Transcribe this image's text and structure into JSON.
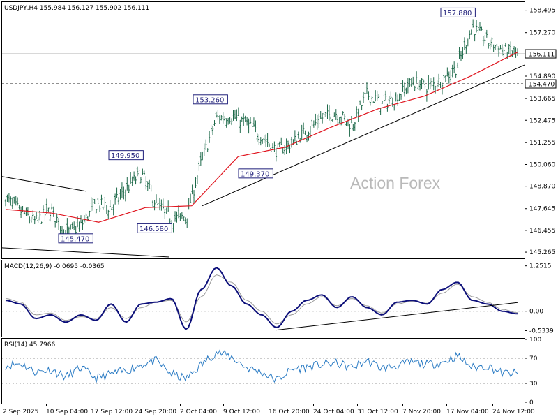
{
  "header": {
    "main": "USDJPY,H4  155.984 156.127 155.902 156.111",
    "macd": "MACD(12,26,9) -0.0695 -0.0365",
    "rsi": "RSI(14) 45.7966"
  },
  "watermark": "Action Forex",
  "colors": {
    "bar": "#1e6a4a",
    "ma": "#e0141e",
    "macd": "#0c0f7a",
    "signal": "#9a9a9a",
    "rsi": "#2a7bc4",
    "annotation": "#1f1f7a",
    "trendline": "#000000"
  },
  "chart_data": [
    {
      "type": "ohlc",
      "title": "USDJPY,H4",
      "header_values": {
        "open": 155.984,
        "high": 156.127,
        "low": 155.902,
        "close": 156.111
      },
      "ylim": [
        145.0,
        158.9
      ],
      "y_ticks": [
        "158.495",
        "157.270",
        "156.085",
        "154.890",
        "153.665",
        "152.475",
        "151.255",
        "150.060",
        "148.870",
        "147.645",
        "146.455",
        "145.265"
      ],
      "x_ticks": [
        "2 Sep 2025",
        "10 Sep 04:00",
        "17 Sep 12:00",
        "24 Sep 20:00",
        "2 Oct 04:00",
        "9 Oct 12:00",
        "16 Oct 20:00",
        "24 Oct 04:00",
        "31 Oct 12:00",
        "7 Nov 20:00",
        "17 Nov 04:00",
        "24 Nov 12:00"
      ],
      "current_price": "156.111",
      "level": "154.470",
      "annotations": [
        {
          "text": "145.470",
          "at": "10 Sep 04:00"
        },
        {
          "text": "149.950",
          "at": "24 Sep 20:00"
        },
        {
          "text": "146.580",
          "at": "2 Oct 04:00"
        },
        {
          "text": "153.260",
          "at": "9 Oct 12:00"
        },
        {
          "text": "149.370",
          "at": "16 Oct 20:00"
        },
        {
          "text": "157.880",
          "at": "17 Nov 04:00"
        }
      ],
      "series_close": [
        {
          "date": "2 Sep 2025",
          "close": 148.2
        },
        {
          "date": "5 Sep 2025",
          "close": 147.5
        },
        {
          "date": "10 Sep 04:00",
          "close": 146.9
        },
        {
          "date": "12 Sep 2025",
          "close": 147.6
        },
        {
          "date": "16 Sep 2025",
          "close": 146.3
        },
        {
          "date": "17 Sep 12:00",
          "close": 146.7
        },
        {
          "date": "19 Sep 2025",
          "close": 147.9
        },
        {
          "date": "23 Sep 2025",
          "close": 147.7
        },
        {
          "date": "24 Sep 20:00",
          "close": 148.7
        },
        {
          "date": "26 Sep 2025",
          "close": 149.6
        },
        {
          "date": "30 Sep 2025",
          "close": 147.9
        },
        {
          "date": "1 Oct 2025",
          "close": 147.1
        },
        {
          "date": "2 Oct 04:00",
          "close": 147.2
        },
        {
          "date": "6 Oct 2025",
          "close": 150.2
        },
        {
          "date": "8 Oct 2025",
          "close": 152.6
        },
        {
          "date": "9 Oct 12:00",
          "close": 152.7
        },
        {
          "date": "11 Oct 2025",
          "close": 152.3
        },
        {
          "date": "14 Oct 2025",
          "close": 151.6
        },
        {
          "date": "16 Oct 20:00",
          "close": 150.8
        },
        {
          "date": "20 Oct 2025",
          "close": 151.2
        },
        {
          "date": "22 Oct 2025",
          "close": 151.9
        },
        {
          "date": "24 Oct 04:00",
          "close": 152.6
        },
        {
          "date": "27 Oct 2025",
          "close": 152.9
        },
        {
          "date": "29 Oct 2025",
          "close": 152.2
        },
        {
          "date": "31 Oct 12:00",
          "close": 153.9
        },
        {
          "date": "3 Nov 2025",
          "close": 153.4
        },
        {
          "date": "5 Nov 2025",
          "close": 153.7
        },
        {
          "date": "7 Nov 20:00",
          "close": 154.6
        },
        {
          "date": "11 Nov 2025",
          "close": 154.3
        },
        {
          "date": "13 Nov 2025",
          "close": 154.7
        },
        {
          "date": "17 Nov 04:00",
          "close": 155.4
        },
        {
          "date": "19 Nov 2025",
          "close": 157.6
        },
        {
          "date": "21 Nov 2025",
          "close": 156.8
        },
        {
          "date": "24 Nov 12:00",
          "close": 156.3
        },
        {
          "date": "26 Nov 2025",
          "close": 156.111
        }
      ],
      "series_ma": [
        {
          "date": "2 Sep 2025",
          "value": 147.6
        },
        {
          "date": "10 Sep 04:00",
          "value": 147.4
        },
        {
          "date": "17 Sep 12:00",
          "value": 146.9
        },
        {
          "date": "24 Sep 20:00",
          "value": 147.7
        },
        {
          "date": "2 Oct 04:00",
          "value": 147.8
        },
        {
          "date": "9 Oct 12:00",
          "value": 150.5
        },
        {
          "date": "16 Oct 20:00",
          "value": 151.0
        },
        {
          "date": "24 Oct 04:00",
          "value": 152.1
        },
        {
          "date": "31 Oct 12:00",
          "value": 153.1
        },
        {
          "date": "7 Nov 20:00",
          "value": 153.8
        },
        {
          "date": "17 Nov 04:00",
          "value": 154.9
        },
        {
          "date": "24 Nov 12:00",
          "value": 156.2
        }
      ]
    },
    {
      "type": "line",
      "title": "MACD(12,26,9)",
      "header_values": {
        "macd": -0.0695,
        "signal": -0.0365
      },
      "ylim": [
        -0.66,
        1.38
      ],
      "y_ticks": [
        "1.2515",
        "0.00",
        "-0.5339"
      ],
      "series": [
        {
          "name": "MACD",
          "values": [
            0.3,
            0.2,
            -0.2,
            -0.1,
            -0.3,
            -0.1,
            -0.25,
            0.2,
            -0.3,
            0.2,
            0.25,
            0.35,
            -0.5,
            0.6,
            1.2,
            0.7,
            0.2,
            -0.1,
            -0.45,
            0.0,
            0.3,
            0.45,
            0.1,
            0.4,
            0.1,
            -0.1,
            0.25,
            0.3,
            0.2,
            0.6,
            0.8,
            0.3,
            0.2,
            0.0,
            -0.07
          ]
        },
        {
          "name": "Signal",
          "values": [
            0.35,
            0.25,
            -0.1,
            -0.05,
            -0.25,
            -0.15,
            -0.2,
            0.1,
            -0.2,
            0.1,
            0.25,
            0.3,
            -0.3,
            0.4,
            1.0,
            0.8,
            0.3,
            0.0,
            -0.35,
            -0.1,
            0.2,
            0.4,
            0.15,
            0.35,
            0.15,
            -0.05,
            0.2,
            0.28,
            0.22,
            0.5,
            0.75,
            0.4,
            0.25,
            0.05,
            -0.04
          ]
        }
      ]
    },
    {
      "type": "line",
      "title": "RSI(14)",
      "header_values": {
        "rsi": 45.7966
      },
      "ylim": [
        0,
        100
      ],
      "y_ticks": [
        "100",
        "70",
        "30",
        "0"
      ],
      "series": [
        {
          "name": "RSI",
          "values": [
            58,
            62,
            48,
            52,
            40,
            55,
            38,
            45,
            50,
            60,
            66,
            45,
            37,
            60,
            80,
            72,
            55,
            48,
            35,
            52,
            56,
            60,
            62,
            55,
            66,
            54,
            58,
            64,
            60,
            63,
            74,
            55,
            58,
            46,
            45.7966
          ]
        }
      ]
    }
  ]
}
